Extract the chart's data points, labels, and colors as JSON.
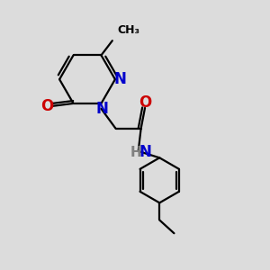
{
  "background_color": "#dcdcdc",
  "bond_color": "#000000",
  "n_color": "#0000cc",
  "o_color": "#cc0000",
  "h_color": "#808080",
  "line_width": 1.6,
  "figsize": [
    3.0,
    3.0
  ],
  "dpi": 100,
  "xlim": [
    0,
    10
  ],
  "ylim": [
    0,
    10
  ]
}
